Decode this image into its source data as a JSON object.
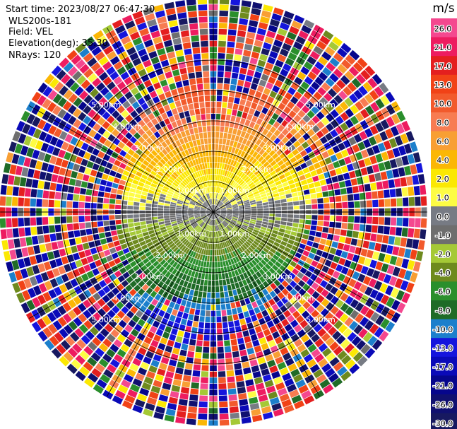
{
  "header": {
    "start_time": "Start time: 2023/08/27 06:47:30",
    "instrument": "WLS200s-181",
    "field": "Field: VEL",
    "elevation": "Elevation(deg): 35.30",
    "nrays": "NRays: 120"
  },
  "chart_data": {
    "type": "heatmap",
    "projection": "polar-ppi",
    "field": "VEL",
    "units": "m/s",
    "nrays": 120,
    "range_rings_km": [
      1,
      2,
      3,
      4,
      5
    ],
    "ring_labels": [
      "1.00km",
      "2.00km",
      "3.00km",
      "4.00km",
      "5.00km"
    ],
    "max_range_km": 7.0,
    "spokes_deg": [
      0,
      30,
      60,
      90,
      120,
      150,
      180,
      210,
      240,
      270,
      300,
      330
    ],
    "colorbar": {
      "label": "m/s",
      "ticks": [
        "26.0",
        "21.0",
        "17.0",
        "13.0",
        "10.0",
        "8.0",
        "6.0",
        "4.0",
        "2.0",
        "1.0",
        "0.0",
        "-1.0",
        "-2.0",
        "-4.0",
        "-6.0",
        "-8.0",
        "-10.0",
        "-13.0",
        "-17.0",
        "-21.0",
        "-26.0",
        "-30.0"
      ],
      "colors": [
        "#f4488f",
        "#ed1c60",
        "#e41f1f",
        "#f14217",
        "#f25a2c",
        "#f77c52",
        "#f89f34",
        "#fbb705",
        "#fbe803",
        "#fdfc44",
        "#777b84",
        "#6e6e6e",
        "#a5c936",
        "#6e8a1e",
        "#2a8f2c",
        "#1f6b27",
        "#1c7fcc",
        "#1515dd",
        "#0a0ab8",
        "#06068c",
        "#101070",
        "#171960"
      ]
    }
  }
}
